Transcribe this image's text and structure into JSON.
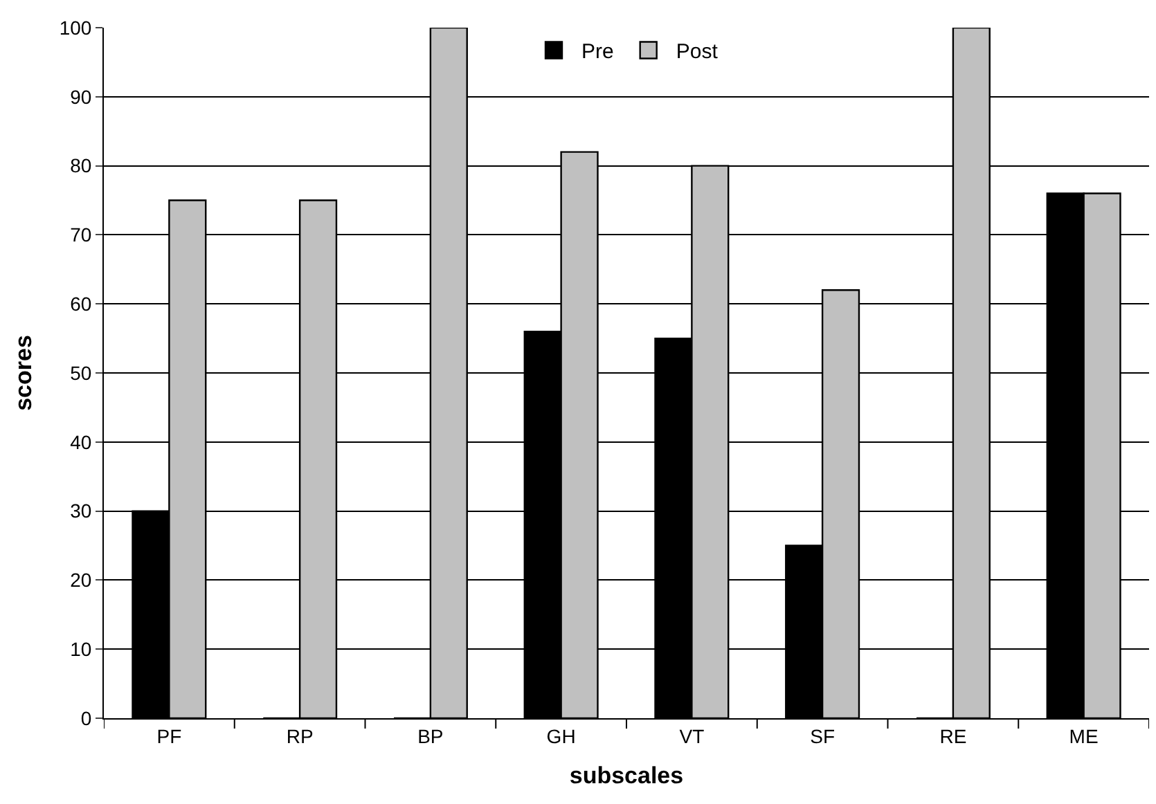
{
  "chart_data": {
    "type": "bar",
    "xlabel": "subscales",
    "ylabel": "scores",
    "categories": [
      "PF",
      "RP",
      "BP",
      "GH",
      "VT",
      "SF",
      "RE",
      "ME"
    ],
    "series": [
      {
        "name": "Pre",
        "color": "#000000",
        "values": [
          30,
          0,
          0,
          56,
          55,
          25,
          0,
          76
        ]
      },
      {
        "name": "Post",
        "color": "#c0c0c0",
        "values": [
          75,
          75,
          100,
          82,
          80,
          62,
          100,
          76
        ]
      }
    ],
    "ylim": [
      0,
      100
    ],
    "yticks": [
      0,
      10,
      20,
      30,
      40,
      50,
      60,
      70,
      80,
      90,
      100
    ],
    "grid": "y",
    "legend": "top"
  }
}
